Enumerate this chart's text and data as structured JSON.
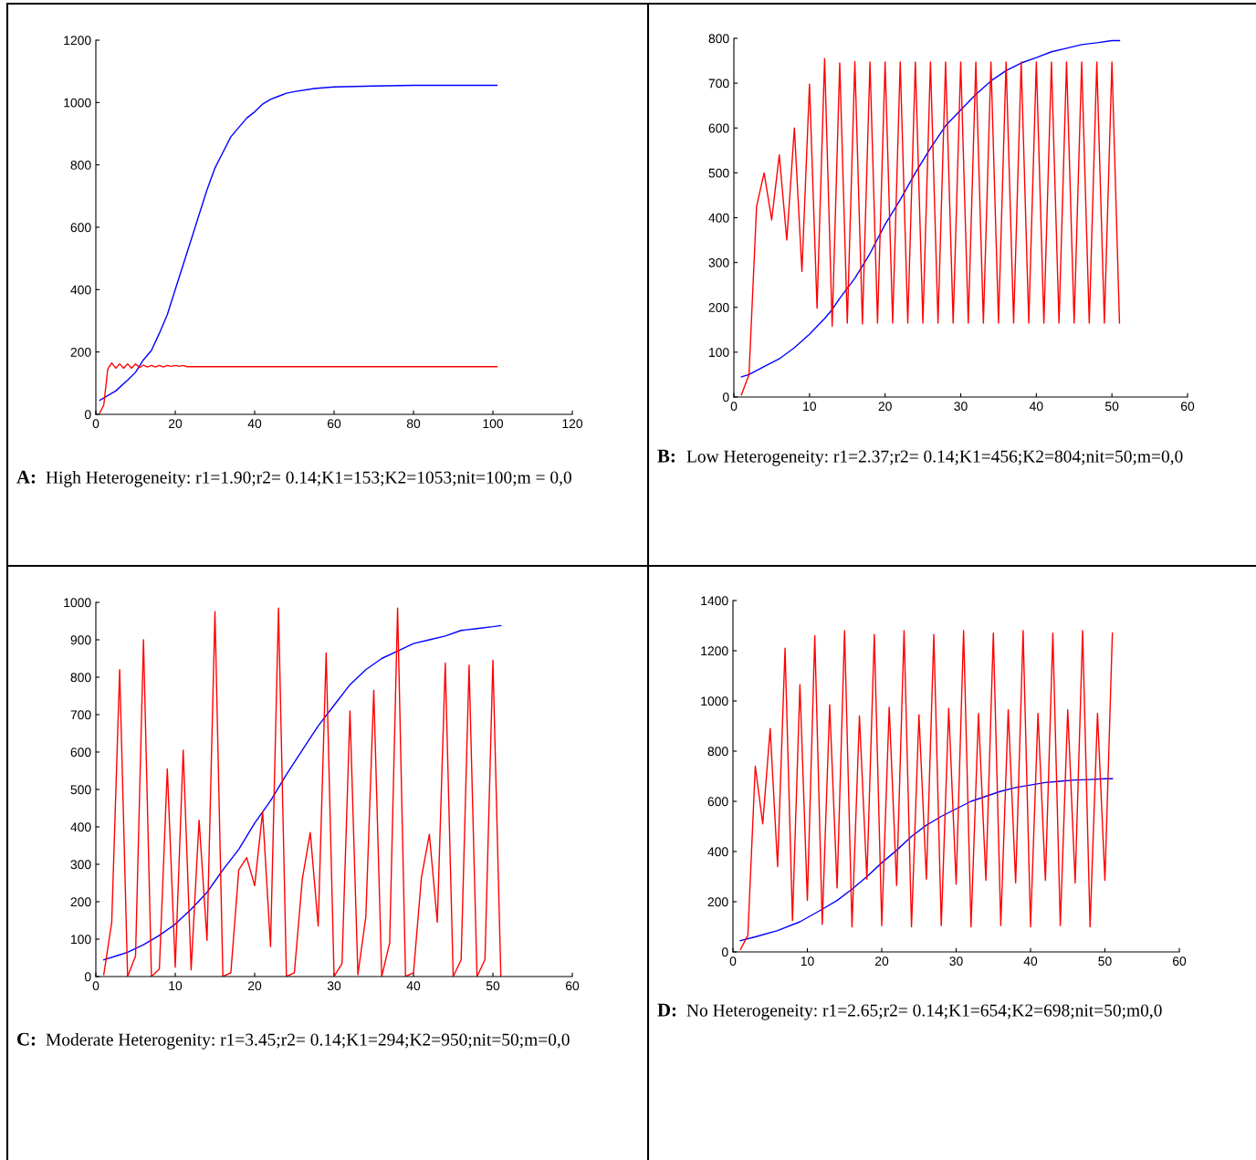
{
  "chart_data": [
    {
      "type": "line",
      "xlim": [
        0,
        120
      ],
      "ylim": [
        0,
        1200
      ],
      "xticks": [
        0,
        20,
        40,
        60,
        80,
        100,
        120
      ],
      "yticks": [
        0,
        200,
        400,
        600,
        800,
        1000,
        1200
      ],
      "grid": false,
      "annotations": [
        "A:",
        "High Heterogeneity: r1=1.90;r2= 0.14;K1=153;K2=1053;nit=100;m = 0,0"
      ],
      "series": [
        {
          "color": "#0000ff",
          "x": [
            1,
            5,
            8,
            10,
            12,
            14,
            16,
            18,
            20,
            22,
            24,
            26,
            28,
            30,
            32,
            34,
            36,
            38,
            40,
            42,
            44,
            46,
            48,
            50,
            55,
            60,
            70,
            80,
            101
          ],
          "values": [
            45,
            75,
            110,
            135,
            175,
            205,
            260,
            320,
            400,
            480,
            560,
            640,
            720,
            790,
            840,
            890,
            920,
            950,
            970,
            995,
            1010,
            1020,
            1030,
            1035,
            1045,
            1050,
            1053,
            1055,
            1055
          ]
        },
        {
          "color": "#ff0000",
          "x": [
            1,
            2,
            3,
            4,
            5,
            6,
            7,
            8,
            9,
            10,
            11,
            12,
            13,
            14,
            15,
            16,
            17,
            18,
            19,
            20,
            21,
            22,
            23,
            101
          ],
          "values": [
            5,
            30,
            145,
            165,
            148,
            162,
            148,
            162,
            148,
            162,
            150,
            158,
            152,
            157,
            152,
            157,
            152,
            157,
            154,
            157,
            154,
            157,
            153,
            153
          ]
        }
      ]
    },
    {
      "type": "line",
      "xlim": [
        0,
        60
      ],
      "ylim": [
        0,
        800
      ],
      "xticks": [
        0,
        10,
        20,
        30,
        40,
        50,
        60
      ],
      "yticks": [
        0,
        100,
        200,
        300,
        400,
        500,
        600,
        700,
        800
      ],
      "grid": false,
      "annotations": [
        "B:",
        "Low Heterogeneity: r1=2.37;r2= 0.14;K1=456;K2=804;nit=50;m=0,0"
      ],
      "series": [
        {
          "color": "#0000ff",
          "x": [
            1,
            2,
            4,
            6,
            8,
            10,
            12,
            13,
            14,
            16,
            18,
            20,
            22,
            24,
            26,
            28,
            30,
            32,
            34,
            36,
            38,
            40,
            42,
            44,
            46,
            48,
            50,
            51
          ],
          "values": [
            45,
            50,
            68,
            85,
            110,
            140,
            175,
            195,
            220,
            265,
            320,
            385,
            440,
            500,
            555,
            605,
            640,
            675,
            705,
            728,
            745,
            757,
            770,
            778,
            786,
            790,
            795,
            795
          ]
        },
        {
          "color": "#ff0000",
          "x": [
            1,
            2,
            3,
            4,
            5,
            6,
            7,
            8,
            9,
            10,
            11,
            12,
            13,
            14,
            15,
            16,
            17,
            18,
            19,
            20,
            21,
            22,
            23,
            24,
            25,
            26,
            27,
            28,
            29,
            30,
            31,
            32,
            33,
            34,
            35,
            36,
            37,
            38,
            39,
            40,
            41,
            42,
            43,
            44,
            45,
            46,
            47,
            48,
            49,
            50,
            51
          ],
          "values": [
            5,
            50,
            425,
            500,
            395,
            540,
            350,
            600,
            280,
            698,
            198,
            755,
            158,
            745,
            165,
            748,
            163,
            747,
            165,
            747,
            165,
            747,
            165,
            747,
            165,
            747,
            165,
            747,
            165,
            747,
            165,
            747,
            165,
            747,
            165,
            747,
            165,
            747,
            165,
            747,
            165,
            747,
            165,
            747,
            165,
            747,
            165,
            747,
            165,
            747,
            165
          ]
        }
      ]
    },
    {
      "type": "line",
      "xlim": [
        0,
        60
      ],
      "ylim": [
        0,
        1000
      ],
      "xticks": [
        0,
        10,
        20,
        30,
        40,
        50,
        60
      ],
      "yticks": [
        0,
        100,
        200,
        300,
        400,
        500,
        600,
        700,
        800,
        900,
        1000
      ],
      "grid": false,
      "annotations": [
        "C:",
        "Moderate Heterogenity: r1=3.45;r2= 0.14;K1=294;K2=950;nit=50;m=0,0"
      ],
      "series": [
        {
          "color": "#0000ff",
          "x": [
            1,
            3,
            4,
            6,
            8,
            10,
            12,
            14,
            16,
            18,
            20,
            22,
            24,
            26,
            28,
            30,
            32,
            34,
            36,
            38,
            40,
            42,
            44,
            46,
            48,
            50,
            51
          ],
          "values": [
            45,
            58,
            65,
            85,
            110,
            140,
            180,
            225,
            285,
            340,
            410,
            470,
            540,
            605,
            670,
            725,
            780,
            820,
            850,
            870,
            890,
            900,
            910,
            925,
            930,
            935,
            938
          ]
        },
        {
          "color": "#ff0000",
          "x": [
            1,
            2,
            3,
            4,
            5,
            6,
            7,
            8,
            9,
            10,
            11,
            12,
            13,
            14,
            15,
            16,
            17,
            18,
            19,
            20,
            21,
            22,
            23,
            24,
            25,
            26,
            27,
            28,
            29,
            30,
            31,
            32,
            33,
            34,
            35,
            36,
            37,
            38,
            39,
            40,
            41,
            42,
            43,
            44,
            45,
            46,
            47,
            48,
            49,
            50,
            51
          ],
          "values": [
            5,
            145,
            820,
            0,
            55,
            900,
            0,
            20,
            555,
            25,
            605,
            18,
            418,
            97,
            975,
            0,
            10,
            285,
            318,
            243,
            440,
            80,
            985,
            0,
            10,
            260,
            385,
            135,
            865,
            0,
            35,
            710,
            5,
            160,
            765,
            0,
            90,
            985,
            0,
            10,
            265,
            380,
            145,
            838,
            0,
            45,
            832,
            0,
            45,
            845,
            0
          ]
        }
      ]
    },
    {
      "type": "line",
      "xlim": [
        0,
        60
      ],
      "ylim": [
        0,
        1400
      ],
      "xticks": [
        0,
        10,
        20,
        30,
        40,
        50,
        60
      ],
      "yticks": [
        0,
        200,
        400,
        600,
        800,
        1000,
        1200,
        1400
      ],
      "grid": false,
      "annotations": [
        "D:",
        "No Heterogeneity: r1=2.65;r2= 0.14;K1=654;K2=698;nit=50;m0,0"
      ],
      "series": [
        {
          "color": "#0000ff",
          "x": [
            1,
            3,
            6,
            9,
            12,
            14,
            16,
            18,
            20,
            22,
            24,
            26,
            28,
            30,
            32,
            34,
            36,
            38,
            40,
            42,
            44,
            46,
            48,
            50,
            51
          ],
          "values": [
            45,
            60,
            85,
            120,
            170,
            205,
            250,
            300,
            355,
            405,
            460,
            505,
            540,
            570,
            600,
            620,
            640,
            655,
            665,
            675,
            680,
            685,
            687,
            690,
            690
          ]
        },
        {
          "color": "#ff0000",
          "x": [
            1,
            2,
            3,
            4,
            5,
            6,
            7,
            8,
            9,
            10,
            11,
            12,
            13,
            14,
            15,
            16,
            17,
            18,
            19,
            20,
            21,
            22,
            23,
            24,
            25,
            26,
            27,
            28,
            29,
            30,
            31,
            32,
            33,
            34,
            35,
            36,
            37,
            38,
            39,
            40,
            41,
            42,
            43,
            44,
            45,
            46,
            47,
            48,
            49,
            50,
            51
          ],
          "values": [
            10,
            65,
            740,
            510,
            890,
            340,
            1210,
            125,
            1065,
            205,
            1260,
            110,
            985,
            255,
            1280,
            100,
            940,
            290,
            1265,
            105,
            975,
            265,
            1280,
            100,
            945,
            290,
            1265,
            105,
            970,
            270,
            1280,
            100,
            950,
            285,
            1270,
            105,
            965,
            275,
            1280,
            100,
            950,
            285,
            1270,
            105,
            965,
            275,
            1280,
            100,
            950,
            285,
            1270
          ]
        }
      ]
    }
  ]
}
